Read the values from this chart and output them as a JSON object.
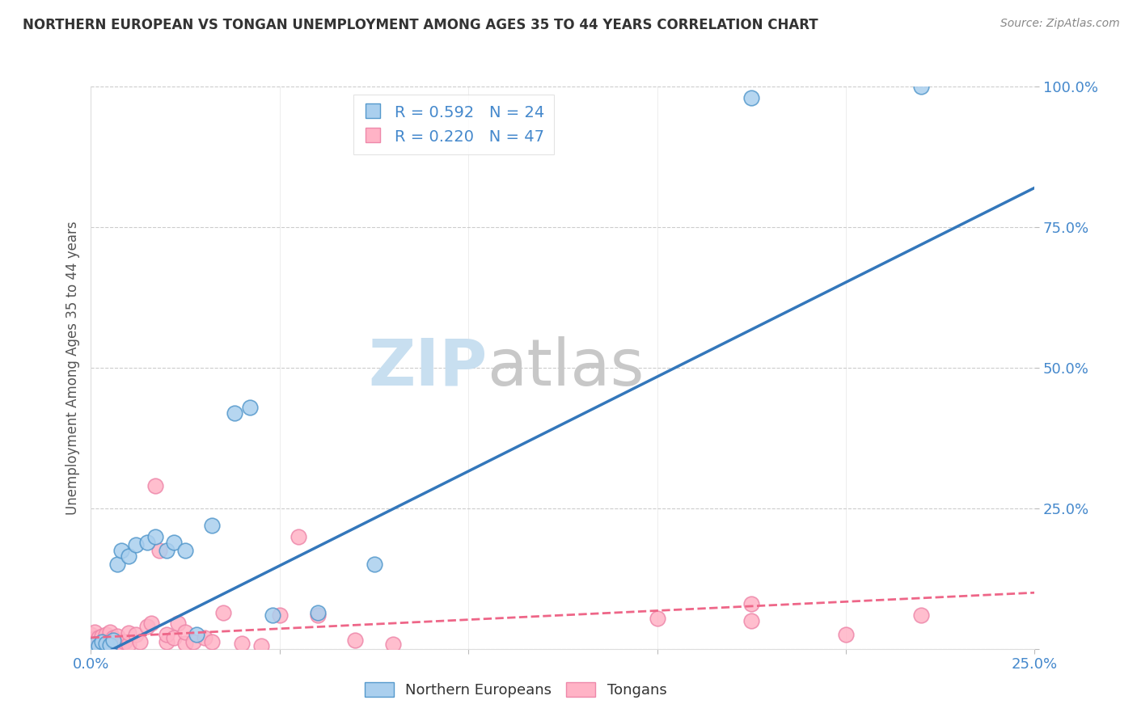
{
  "title": "NORTHERN EUROPEAN VS TONGAN UNEMPLOYMENT AMONG AGES 35 TO 44 YEARS CORRELATION CHART",
  "source": "Source: ZipAtlas.com",
  "ylabel": "Unemployment Among Ages 35 to 44 years",
  "xlim": [
    0,
    0.25
  ],
  "ylim": [
    0,
    1.0
  ],
  "xticks": [
    0.0,
    0.05,
    0.1,
    0.15,
    0.2,
    0.25
  ],
  "yticks": [
    0.0,
    0.25,
    0.5,
    0.75,
    1.0
  ],
  "blue_R": 0.592,
  "blue_N": 24,
  "pink_R": 0.22,
  "pink_N": 47,
  "blue_scatter_color": "#aacfee",
  "blue_edge_color": "#5599cc",
  "pink_scatter_color": "#ffb3c6",
  "pink_edge_color": "#ee88aa",
  "blue_line_color": "#3377bb",
  "pink_line_color": "#ee6688",
  "watermark_zip_color": "#c8dff0",
  "watermark_atlas_color": "#c8c8c8",
  "background_color": "#ffffff",
  "blue_x": [
    0.001,
    0.002,
    0.003,
    0.004,
    0.005,
    0.006,
    0.007,
    0.008,
    0.01,
    0.012,
    0.015,
    0.017,
    0.02,
    0.022,
    0.025,
    0.028,
    0.032,
    0.038,
    0.042,
    0.048,
    0.06,
    0.075,
    0.175,
    0.22
  ],
  "blue_y": [
    0.008,
    0.005,
    0.012,
    0.01,
    0.007,
    0.015,
    0.15,
    0.175,
    0.165,
    0.185,
    0.19,
    0.2,
    0.175,
    0.19,
    0.175,
    0.025,
    0.22,
    0.42,
    0.43,
    0.06,
    0.065,
    0.15,
    0.98,
    1.0
  ],
  "pink_x": [
    0.0,
    0.001,
    0.001,
    0.002,
    0.002,
    0.003,
    0.003,
    0.004,
    0.004,
    0.005,
    0.005,
    0.006,
    0.006,
    0.007,
    0.007,
    0.008,
    0.009,
    0.01,
    0.01,
    0.012,
    0.013,
    0.015,
    0.016,
    0.017,
    0.018,
    0.02,
    0.02,
    0.022,
    0.023,
    0.025,
    0.025,
    0.027,
    0.03,
    0.032,
    0.035,
    0.04,
    0.045,
    0.05,
    0.055,
    0.06,
    0.07,
    0.08,
    0.15,
    0.175,
    0.175,
    0.2,
    0.22
  ],
  "pink_y": [
    0.025,
    0.018,
    0.03,
    0.01,
    0.02,
    0.005,
    0.022,
    0.01,
    0.025,
    0.008,
    0.03,
    0.012,
    0.02,
    0.005,
    0.022,
    0.01,
    0.012,
    0.008,
    0.028,
    0.025,
    0.012,
    0.04,
    0.045,
    0.29,
    0.175,
    0.012,
    0.025,
    0.02,
    0.045,
    0.01,
    0.03,
    0.012,
    0.02,
    0.012,
    0.065,
    0.01,
    0.005,
    0.06,
    0.2,
    0.06,
    0.015,
    0.008,
    0.055,
    0.05,
    0.08,
    0.025,
    0.06
  ],
  "blue_line_x0": 0.0,
  "blue_line_y0": -0.02,
  "blue_line_x1": 0.25,
  "blue_line_y1": 0.82,
  "pink_line_x0": 0.0,
  "pink_line_y0": 0.02,
  "pink_line_x1": 0.25,
  "pink_line_y1": 0.1
}
